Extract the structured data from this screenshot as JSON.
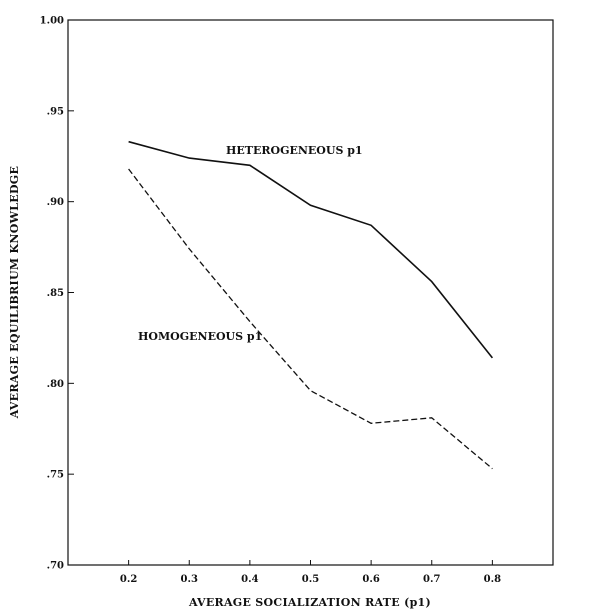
{
  "chart_data": {
    "type": "line",
    "title": "",
    "xlabel": "AVERAGE SOCIALIZATION RATE (p1)",
    "ylabel": "AVERAGE EQUILIBRIUM KNOWLEDGE",
    "xlim": [
      0.1,
      0.9
    ],
    "ylim": [
      0.7,
      1.0
    ],
    "x_ticks": [
      "0.2",
      "0.3",
      "0.4",
      "0.5",
      "0.6",
      "0.7",
      "0.8"
    ],
    "y_ticks": [
      ".70",
      ".75",
      ".80",
      ".85",
      ".90",
      ".95",
      "1.00"
    ],
    "grid": false,
    "x": [
      0.2,
      0.3,
      0.4,
      0.5,
      0.6,
      0.7,
      0.8
    ],
    "series": [
      {
        "name": "HETEROGENEOUS p1",
        "style": "solid",
        "values": [
          0.933,
          0.924,
          0.92,
          0.898,
          0.887,
          0.856,
          0.814
        ]
      },
      {
        "name": "HOMOGENEOUS p1",
        "style": "dashed",
        "values": [
          0.918,
          0.874,
          0.834,
          0.796,
          0.778,
          0.781,
          0.753
        ]
      }
    ],
    "colors": {
      "line": "#111111",
      "background": "#ffffff"
    }
  }
}
